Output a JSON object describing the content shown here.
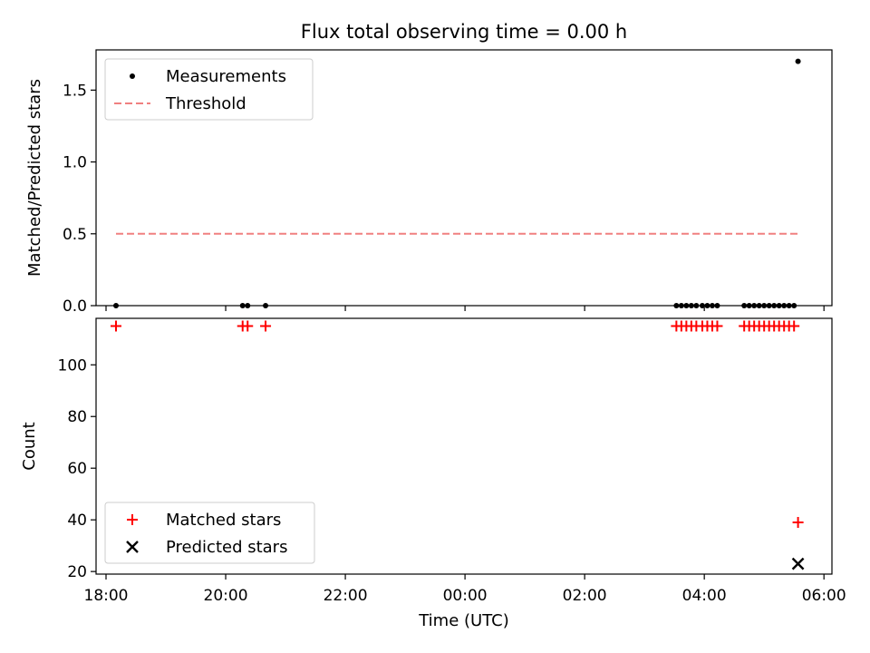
{
  "chart_data": [
    {
      "type": "scatter",
      "title": "Flux total observing time = 0.00 h",
      "xlabel": "",
      "ylabel": "Matched/Predicted stars",
      "xlim": [
        "17:50",
        "06:08"
      ],
      "ylim": [
        0,
        1.78
      ],
      "yticks": [
        "0.0",
        "0.5",
        "1.0",
        "1.5"
      ],
      "grid": false,
      "legend_position": "upper-left",
      "series": [
        {
          "name": "Measurements",
          "marker": "dot",
          "color": "#000000",
          "points": [
            {
              "x": "18:10",
              "y": 0
            },
            {
              "x": "20:17",
              "y": 0
            },
            {
              "x": "20:22",
              "y": 0
            },
            {
              "x": "20:40",
              "y": 0
            },
            {
              "x": "03:32",
              "y": 0
            },
            {
              "x": "03:37",
              "y": 0
            },
            {
              "x": "03:42",
              "y": 0
            },
            {
              "x": "03:47",
              "y": 0
            },
            {
              "x": "03:52",
              "y": 0
            },
            {
              "x": "03:58",
              "y": 0
            },
            {
              "x": "04:03",
              "y": 0
            },
            {
              "x": "04:08",
              "y": 0
            },
            {
              "x": "04:13",
              "y": 0
            },
            {
              "x": "04:40",
              "y": 0
            },
            {
              "x": "04:45",
              "y": 0
            },
            {
              "x": "04:50",
              "y": 0
            },
            {
              "x": "04:55",
              "y": 0
            },
            {
              "x": "05:00",
              "y": 0
            },
            {
              "x": "05:05",
              "y": 0
            },
            {
              "x": "05:10",
              "y": 0
            },
            {
              "x": "05:15",
              "y": 0
            },
            {
              "x": "05:20",
              "y": 0
            },
            {
              "x": "05:25",
              "y": 0
            },
            {
              "x": "05:30",
              "y": 0
            },
            {
              "x": "05:34",
              "y": 1.7
            }
          ]
        },
        {
          "name": "Threshold",
          "marker": "dashed-line",
          "color": "#f08080",
          "points": [
            {
              "x": "18:10",
              "y": 0.5
            },
            {
              "x": "05:34",
              "y": 0.5
            }
          ]
        }
      ]
    },
    {
      "type": "scatter",
      "title": "",
      "xlabel": "Time (UTC)",
      "ylabel": "Count",
      "xlim": [
        "17:50",
        "06:08"
      ],
      "ylim": [
        19,
        118
      ],
      "xticks": [
        "18:00",
        "20:00",
        "22:00",
        "00:00",
        "02:00",
        "04:00",
        "06:00"
      ],
      "yticks": [
        "20",
        "40",
        "60",
        "80",
        "100"
      ],
      "grid": false,
      "legend_position": "lower-left",
      "series": [
        {
          "name": "Matched stars",
          "marker": "plus",
          "color": "#ff0000",
          "points": [
            {
              "x": "18:10",
              "y": 115
            },
            {
              "x": "20:17",
              "y": 115
            },
            {
              "x": "20:22",
              "y": 115
            },
            {
              "x": "20:40",
              "y": 115
            },
            {
              "x": "03:32",
              "y": 115
            },
            {
              "x": "03:37",
              "y": 115
            },
            {
              "x": "03:42",
              "y": 115
            },
            {
              "x": "03:47",
              "y": 115
            },
            {
              "x": "03:52",
              "y": 115
            },
            {
              "x": "03:58",
              "y": 115
            },
            {
              "x": "04:03",
              "y": 115
            },
            {
              "x": "04:08",
              "y": 115
            },
            {
              "x": "04:13",
              "y": 115
            },
            {
              "x": "04:40",
              "y": 115
            },
            {
              "x": "04:45",
              "y": 115
            },
            {
              "x": "04:50",
              "y": 115
            },
            {
              "x": "04:55",
              "y": 115
            },
            {
              "x": "05:00",
              "y": 115
            },
            {
              "x": "05:05",
              "y": 115
            },
            {
              "x": "05:10",
              "y": 115
            },
            {
              "x": "05:15",
              "y": 115
            },
            {
              "x": "05:20",
              "y": 115
            },
            {
              "x": "05:25",
              "y": 115
            },
            {
              "x": "05:30",
              "y": 115
            },
            {
              "x": "05:34",
              "y": 39
            }
          ]
        },
        {
          "name": "Predicted stars",
          "marker": "x",
          "color": "#000000",
          "points": [
            {
              "x": "05:34",
              "y": 23
            }
          ]
        }
      ]
    }
  ]
}
